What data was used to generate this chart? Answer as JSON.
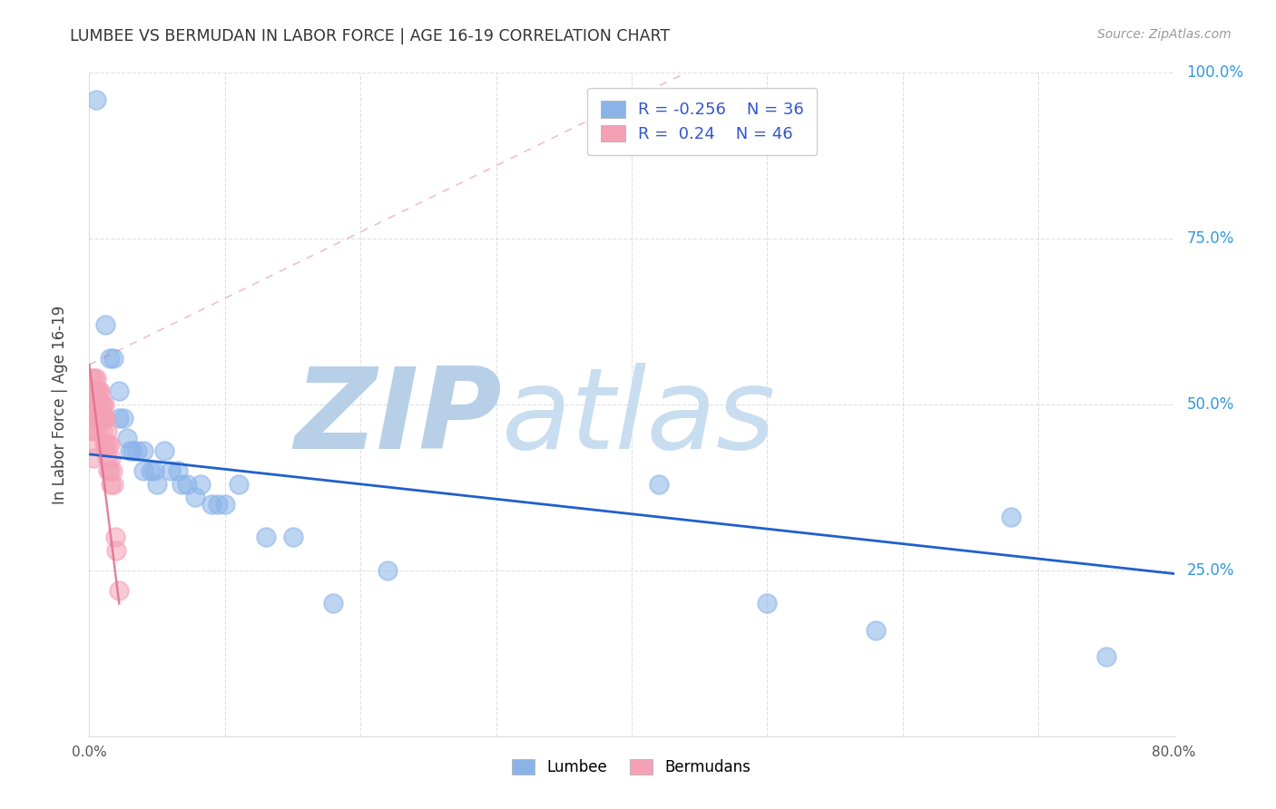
{
  "title": "LUMBEE VS BERMUDAN IN LABOR FORCE | AGE 16-19 CORRELATION CHART",
  "source": "Source: ZipAtlas.com",
  "ylabel_label": "In Labor Force | Age 16-19",
  "xlim": [
    0.0,
    0.8
  ],
  "ylim": [
    0.0,
    1.0
  ],
  "yticks": [
    0.0,
    0.25,
    0.5,
    0.75,
    1.0
  ],
  "ytick_labels": [
    "",
    "25.0%",
    "50.0%",
    "75.0%",
    "100.0%"
  ],
  "xtick_positions": [
    0.0,
    0.1,
    0.2,
    0.3,
    0.4,
    0.5,
    0.6,
    0.7,
    0.8
  ],
  "xtick_labels": [
    "0.0%",
    "",
    "",
    "",
    "",
    "",
    "",
    "",
    "80.0%"
  ],
  "lumbee_R": -0.256,
  "lumbee_N": 36,
  "bermudan_R": 0.24,
  "bermudan_N": 46,
  "lumbee_color": "#8ab4e8",
  "bermudan_color": "#f4a0b5",
  "lumbee_line_color": "#2060cc",
  "bermudan_line_color": "#e07090",
  "background_color": "#ffffff",
  "grid_color": "#cccccc",
  "title_color": "#333333",
  "watermark_color_zip": "#b8cfe8",
  "watermark_color_atlas": "#c8ddf0",
  "watermark_text_zip": "ZIP",
  "watermark_text_atlas": "atlas",
  "lumbee_x": [
    0.005,
    0.012,
    0.015,
    0.018,
    0.022,
    0.022,
    0.025,
    0.028,
    0.03,
    0.032,
    0.035,
    0.04,
    0.04,
    0.045,
    0.048,
    0.05,
    0.055,
    0.06,
    0.065,
    0.068,
    0.072,
    0.078,
    0.082,
    0.09,
    0.095,
    0.1,
    0.11,
    0.13,
    0.15,
    0.18,
    0.22,
    0.42,
    0.5,
    0.58,
    0.68,
    0.75
  ],
  "lumbee_y": [
    0.96,
    0.62,
    0.57,
    0.57,
    0.52,
    0.48,
    0.48,
    0.45,
    0.43,
    0.43,
    0.43,
    0.43,
    0.4,
    0.4,
    0.4,
    0.38,
    0.43,
    0.4,
    0.4,
    0.38,
    0.38,
    0.36,
    0.38,
    0.35,
    0.35,
    0.35,
    0.38,
    0.3,
    0.3,
    0.2,
    0.25,
    0.38,
    0.2,
    0.16,
    0.33,
    0.12
  ],
  "bermudan_x": [
    0.002,
    0.002,
    0.002,
    0.003,
    0.003,
    0.003,
    0.003,
    0.003,
    0.004,
    0.004,
    0.004,
    0.005,
    0.005,
    0.005,
    0.005,
    0.005,
    0.006,
    0.006,
    0.006,
    0.007,
    0.007,
    0.008,
    0.008,
    0.009,
    0.009,
    0.01,
    0.01,
    0.01,
    0.011,
    0.011,
    0.011,
    0.012,
    0.012,
    0.013,
    0.013,
    0.014,
    0.014,
    0.015,
    0.015,
    0.016,
    0.016,
    0.017,
    0.018,
    0.019,
    0.02,
    0.022
  ],
  "bermudan_y": [
    0.54,
    0.5,
    0.46,
    0.52,
    0.5,
    0.48,
    0.46,
    0.42,
    0.54,
    0.52,
    0.48,
    0.54,
    0.52,
    0.5,
    0.48,
    0.44,
    0.52,
    0.5,
    0.46,
    0.52,
    0.48,
    0.52,
    0.5,
    0.5,
    0.48,
    0.5,
    0.48,
    0.46,
    0.5,
    0.48,
    0.44,
    0.48,
    0.44,
    0.46,
    0.42,
    0.44,
    0.4,
    0.44,
    0.4,
    0.42,
    0.38,
    0.4,
    0.38,
    0.3,
    0.28,
    0.22
  ],
  "lumbee_trend_x": [
    0.0,
    0.8
  ],
  "lumbee_trend_y": [
    0.425,
    0.245
  ],
  "bermudan_trend_x": [
    0.0,
    0.022
  ],
  "bermudan_trend_y": [
    0.56,
    0.2
  ],
  "bermudan_dashed_trend_x": [
    0.0,
    0.44
  ],
  "bermudan_dashed_trend_y": [
    0.56,
    1.0
  ]
}
